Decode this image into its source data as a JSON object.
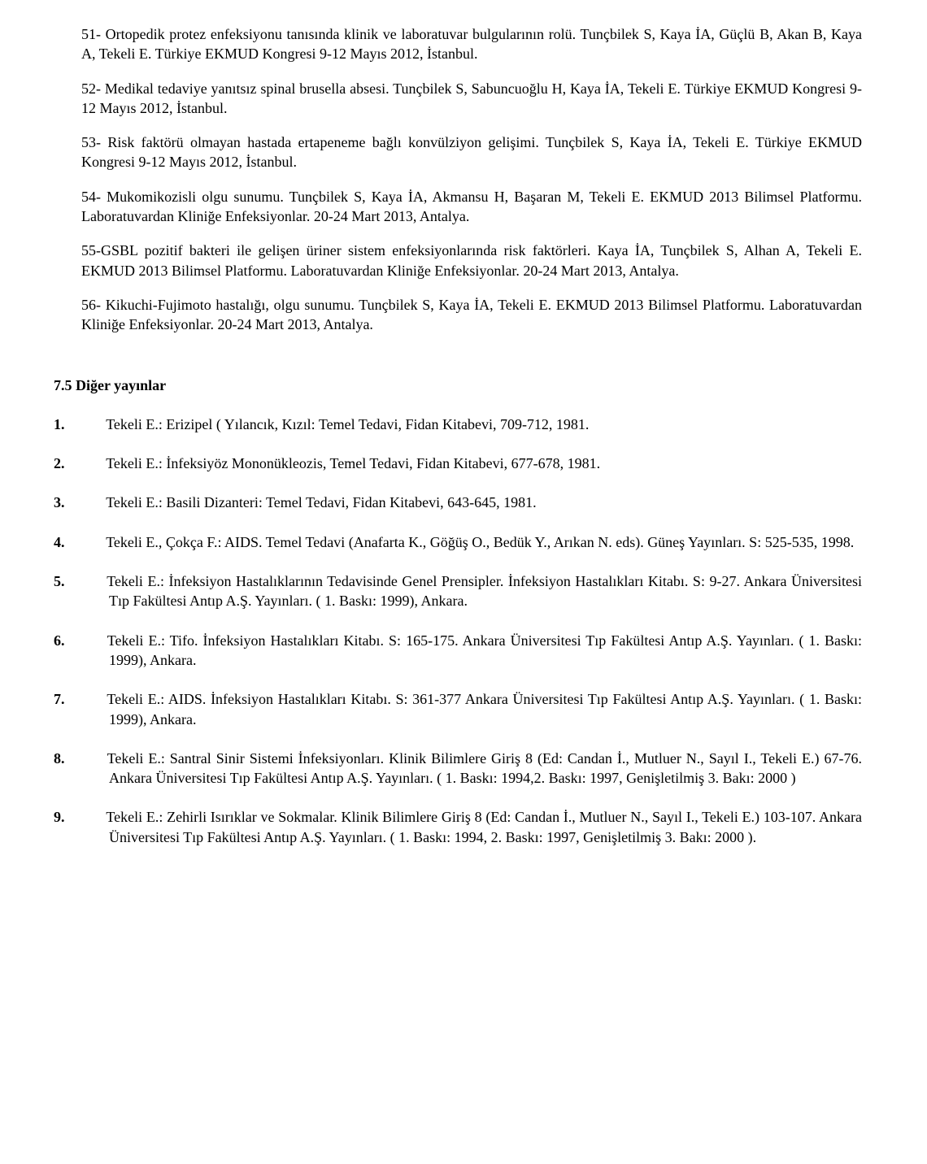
{
  "paragraphs": [
    "51- Ortopedik protez enfeksiyonu tanısında klinik ve laboratuvar bulgularının rolü. Tunçbilek S, Kaya İA, Güçlü B, Akan B, Kaya A, Tekeli E. Türkiye EKMUD Kongresi 9-12 Mayıs 2012, İstanbul.",
    "52- Medikal tedaviye yanıtsız spinal brusella absesi. Tunçbilek S, Sabuncuoğlu H, Kaya İA, Tekeli E. Türkiye EKMUD Kongresi 9-12 Mayıs 2012, İstanbul.",
    "53- Risk faktörü olmayan hastada ertapeneme bağlı konvülziyon gelişimi. Tunçbilek S, Kaya İA, Tekeli E. Türkiye EKMUD Kongresi 9-12 Mayıs 2012, İstanbul.",
    "54- Mukomikozisli olgu sunumu. Tunçbilek S, Kaya İA, Akmansu H, Başaran M, Tekeli E. EKMUD 2013 Bilimsel Platformu. Laboratuvardan Kliniğe Enfeksiyonlar. 20-24 Mart 2013, Antalya.",
    "55-GSBL pozitif bakteri ile gelişen üriner sistem enfeksiyonlarında risk faktörleri. Kaya İA, Tunçbilek S, Alhan A, Tekeli E. EKMUD 2013 Bilimsel Platformu. Laboratuvardan Kliniğe Enfeksiyonlar. 20-24 Mart 2013, Antalya.",
    "56- Kikuchi-Fujimoto hastalığı, olgu sunumu. Tunçbilek S, Kaya İA, Tekeli E. EKMUD 2013 Bilimsel Platformu. Laboratuvardan Kliniğe Enfeksiyonlar. 20-24 Mart 2013, Antalya."
  ],
  "section_title": "7.5  Diğer yayınlar",
  "other_pubs": [
    {
      "num": "1.",
      "text": "Tekeli E.: Erizipel ( Yılancık, Kızıl: Temel Tedavi, Fidan Kitabevi, 709-712, 1981."
    },
    {
      "num": "2.",
      "text": "Tekeli E.: İnfeksiyöz Mononükleozis, Temel Tedavi, Fidan Kitabevi, 677-678, 1981."
    },
    {
      "num": "3.",
      "text": "Tekeli E.: Basili Dizanteri: Temel Tedavi, Fidan Kitabevi, 643-645, 1981."
    },
    {
      "num": "4.",
      "text": "Tekeli E., Çokça F.: AIDS. Temel Tedavi (Anafarta K., Göğüş O., Bedük Y., Arıkan N. eds). Güneş Yayınları. S: 525-535, 1998."
    },
    {
      "num": "5.",
      "text": "Tekeli E.: İnfeksiyon Hastalıklarının Tedavisinde Genel Prensipler. İnfeksiyon Hastalıkları Kitabı. S: 9-27. Ankara Üniversitesi Tıp Fakültesi Antıp A.Ş. Yayınları. ( 1. Baskı: 1999), Ankara."
    },
    {
      "num": "6.",
      "text": "Tekeli E.: Tifo. İnfeksiyon Hastalıkları Kitabı. S: 165-175. Ankara Üniversitesi Tıp Fakültesi Antıp A.Ş. Yayınları. ( 1. Baskı: 1999), Ankara."
    },
    {
      "num": "7.",
      "text": "Tekeli E.: AIDS. İnfeksiyon Hastalıkları Kitabı. S: 361-377 Ankara Üniversitesi Tıp Fakültesi Antıp A.Ş. Yayınları. ( 1. Baskı: 1999), Ankara."
    },
    {
      "num": "8.",
      "text": "Tekeli E.: Santral Sinir Sistemi İnfeksiyonları. Klinik Bilimlere Giriş 8 (Ed: Candan İ., Mutluer N., Sayıl I., Tekeli E.) 67-76. Ankara Üniversitesi Tıp Fakültesi Antıp A.Ş. Yayınları. ( 1. Baskı: 1994,2. Baskı: 1997, Genişletilmiş 3. Bakı: 2000 )"
    },
    {
      "num": "9.",
      "text": "Tekeli E.: Zehirli Isırıklar ve Sokmalar. Klinik Bilimlere Giriş 8 (Ed: Candan İ., Mutluer N., Sayıl I., Tekeli E.) 103-107. Ankara Üniversitesi Tıp Fakültesi Antıp A.Ş. Yayınları. ( 1. Baskı: 1994, 2. Baskı: 1997, Genişletilmiş 3. Bakı: 2000 )."
    }
  ]
}
